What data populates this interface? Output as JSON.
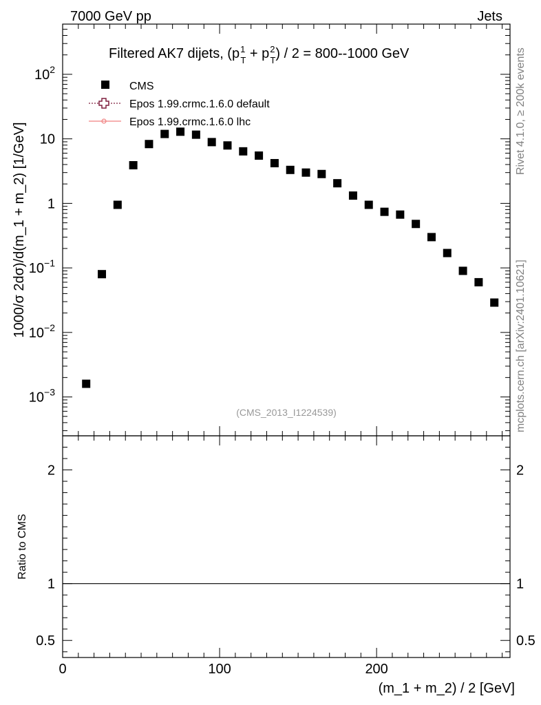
{
  "header": {
    "left": "7000 GeV pp",
    "right": "Jets"
  },
  "side_labels": {
    "rivet": "Rivet 4.1.0, ≥ 200k events",
    "mcplots": "mcplots.cern.ch [arXiv:2401.10621]"
  },
  "chart_data": {
    "type": "scatter",
    "title": "Filtered AK7 dijets, (p_T^1 + p_T^2) / 2 = 800--1000 GeV",
    "title_parts": {
      "prefix": "Filtered AK7 dijets, (p",
      "sup1": "1",
      "sub1": "T",
      "plus": " + p",
      "sup2": "2",
      "sub2": "T",
      "suffix": ") / 2 = 800--1000 GeV"
    },
    "watermark": "(CMS_2013_I1224539)",
    "xlabel": "(m_1 + m_2) / 2 [GeV]",
    "ylabel": "1000/σ   2dσ)/d(m_1 + m_2) [1/GeV]",
    "ratio_ylabel": "Ratio to CMS",
    "xlim": [
      0,
      285
    ],
    "ylim": [
      0.00025,
      600
    ],
    "yscale": "log",
    "ratio_ylim": [
      0.35,
      2.3
    ],
    "x_ticks": [
      0,
      100,
      200
    ],
    "x_tick_labels": [
      "0",
      "100",
      "200"
    ],
    "y_ticks": [
      {
        "value": 100,
        "base": "10",
        "exp": "2"
      },
      {
        "value": 10,
        "base": "10",
        "exp": ""
      },
      {
        "value": 1,
        "base": "1",
        "exp": ""
      },
      {
        "value": 0.1,
        "base": "10",
        "exp": "−1"
      },
      {
        "value": 0.01,
        "base": "10",
        "exp": "−2"
      },
      {
        "value": 0.001,
        "base": "10",
        "exp": "−3"
      }
    ],
    "ratio_ticks": [
      {
        "value": 2,
        "label": "2"
      },
      {
        "value": 1,
        "label": "1"
      },
      {
        "value": 0.5,
        "label": "0.5"
      }
    ],
    "legend": [
      {
        "name": "CMS",
        "marker": "square",
        "color": "#000000"
      },
      {
        "name": "Epos 1.99.crmc.1.6.0 default",
        "marker": "open-cross",
        "color": "#7f1f3f"
      },
      {
        "name": "Epos 1.99.crmc.1.6.0 lhc",
        "marker": "line-circle",
        "color": "#f08080"
      }
    ],
    "series": [
      {
        "name": "CMS",
        "x": [
          15,
          25,
          35,
          45,
          55,
          65,
          75,
          85,
          95,
          105,
          115,
          125,
          135,
          145,
          155,
          165,
          175,
          185,
          195,
          205,
          215,
          225,
          235,
          245,
          255,
          265,
          275
        ],
        "y": [
          0.0016,
          0.08,
          0.95,
          3.9,
          8.3,
          11.9,
          12.9,
          11.6,
          8.9,
          7.9,
          6.4,
          5.5,
          4.2,
          3.3,
          3.0,
          2.85,
          2.05,
          1.32,
          0.95,
          0.74,
          0.67,
          0.48,
          0.3,
          0.17,
          0.09,
          0.06,
          0.029
        ]
      }
    ]
  }
}
